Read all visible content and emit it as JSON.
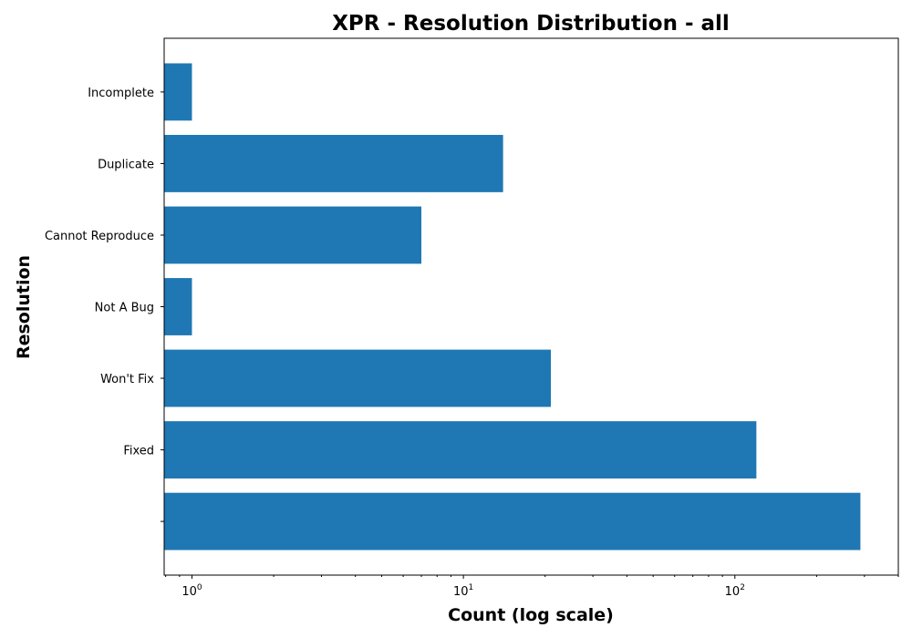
{
  "chart_data": {
    "type": "bar",
    "orientation": "horizontal",
    "title": "XPR - Resolution Distribution - all",
    "xlabel": "Count (log scale)",
    "ylabel": "Resolution",
    "x_scale": "log",
    "xlim": [
      0.79,
      400
    ],
    "categories": [
      "",
      "Fixed",
      "Won't Fix",
      "Not A Bug",
      "Cannot Reproduce",
      "Duplicate",
      "Incomplete"
    ],
    "values": [
      290,
      120,
      21,
      1,
      7,
      14,
      1
    ],
    "x_ticks": [
      {
        "base": "10",
        "exp": "0",
        "value": 1
      },
      {
        "base": "10",
        "exp": "1",
        "value": 10
      },
      {
        "base": "10",
        "exp": "2",
        "value": 100
      }
    ],
    "bar_color": "#1f77b4",
    "grid": false,
    "legend": "none"
  }
}
